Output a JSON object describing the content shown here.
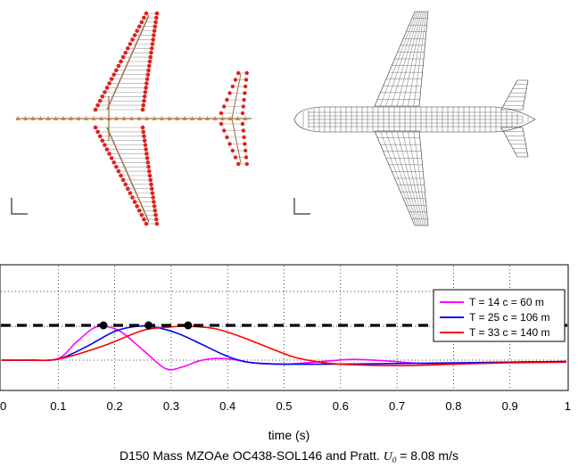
{
  "figure": {
    "left_model": {
      "name": "structural-stick-model"
    },
    "right_model": {
      "name": "aerodynamic-wireframe-model"
    }
  },
  "chart_data": {
    "type": "line",
    "title": "",
    "xlabel": "time (s)",
    "ylabel": "",
    "xlim": [
      0,
      1
    ],
    "xticks": [
      "0",
      "0.1",
      "0.2",
      "0.3",
      "0.4",
      "0.5",
      "0.6",
      "0.7",
      "0.8",
      "0.9",
      "1"
    ],
    "grid": "dotted",
    "legend_position": "top-right",
    "threshold_line": {
      "style": "dashed",
      "color": "#000000",
      "y": 1.0
    },
    "series": [
      {
        "name": "T = 14 c = 60 m",
        "color": "#ff00ff",
        "points": [
          [
            0,
            0
          ],
          [
            0.05,
            0
          ],
          [
            0.1,
            0.05
          ],
          [
            0.13,
            0.5
          ],
          [
            0.16,
            0.92
          ],
          [
            0.18,
            1.0
          ],
          [
            0.21,
            0.85
          ],
          [
            0.25,
            0.3
          ],
          [
            0.29,
            -0.25
          ],
          [
            0.32,
            -0.2
          ],
          [
            0.35,
            -0.02
          ],
          [
            0.38,
            0.05
          ],
          [
            0.41,
            0.02
          ],
          [
            0.44,
            -0.07
          ],
          [
            0.5,
            -0.12
          ],
          [
            0.56,
            -0.05
          ],
          [
            0.62,
            0.02
          ],
          [
            0.68,
            -0.02
          ],
          [
            0.75,
            -0.1
          ],
          [
            0.85,
            -0.07
          ],
          [
            0.95,
            -0.05
          ],
          [
            1.0,
            -0.04
          ]
        ],
        "peak_marker": 0.18
      },
      {
        "name": "T = 25 c = 106 m",
        "color": "#0000ff",
        "points": [
          [
            0,
            0
          ],
          [
            0.05,
            0
          ],
          [
            0.1,
            0.03
          ],
          [
            0.15,
            0.4
          ],
          [
            0.2,
            0.85
          ],
          [
            0.24,
            1.0
          ],
          [
            0.27,
            0.98
          ],
          [
            0.31,
            0.8
          ],
          [
            0.35,
            0.5
          ],
          [
            0.39,
            0.18
          ],
          [
            0.42,
            0.0
          ],
          [
            0.46,
            -0.1
          ],
          [
            0.55,
            -0.12
          ],
          [
            0.7,
            -0.1
          ],
          [
            0.8,
            -0.08
          ],
          [
            0.9,
            -0.06
          ],
          [
            1.0,
            -0.04
          ]
        ],
        "peak_marker": 0.26
      },
      {
        "name": "T = 33 c = 140 m",
        "color": "#ff0000",
        "points": [
          [
            0,
            0
          ],
          [
            0.05,
            0
          ],
          [
            0.1,
            0.03
          ],
          [
            0.18,
            0.42
          ],
          [
            0.25,
            0.88
          ],
          [
            0.3,
            0.98
          ],
          [
            0.33,
            1.0
          ],
          [
            0.38,
            0.92
          ],
          [
            0.43,
            0.65
          ],
          [
            0.48,
            0.32
          ],
          [
            0.52,
            0.08
          ],
          [
            0.56,
            -0.05
          ],
          [
            0.6,
            -0.12
          ],
          [
            0.65,
            -0.15
          ],
          [
            0.72,
            -0.16
          ],
          [
            0.8,
            -0.12
          ],
          [
            0.9,
            -0.08
          ],
          [
            1.0,
            -0.06
          ]
        ],
        "peak_marker": 0.33
      }
    ],
    "caption": "D150 Mass MZOAe OC438-SOL146 and Pratt.",
    "caption_symbol": "U",
    "caption_subscript": "0",
    "caption_value": "= 8.08 m/s"
  }
}
